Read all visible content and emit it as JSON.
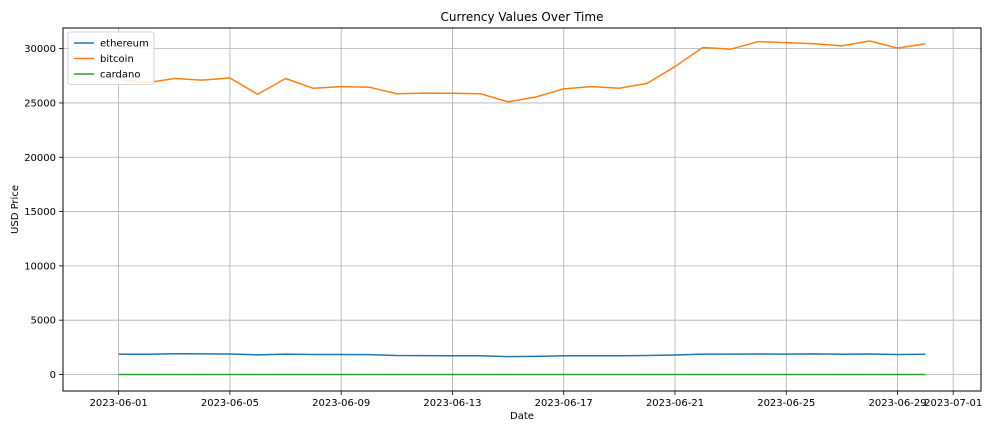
{
  "chart_data": {
    "type": "line",
    "title": "Currency Values Over Time",
    "xlabel": "Date",
    "ylabel": "USD Price",
    "grid": true,
    "legend_position": "top-left",
    "x": [
      "2023-06-01",
      "2023-06-02",
      "2023-06-03",
      "2023-06-04",
      "2023-06-05",
      "2023-06-06",
      "2023-06-07",
      "2023-06-08",
      "2023-06-09",
      "2023-06-10",
      "2023-06-11",
      "2023-06-12",
      "2023-06-13",
      "2023-06-14",
      "2023-06-15",
      "2023-06-16",
      "2023-06-17",
      "2023-06-18",
      "2023-06-19",
      "2023-06-20",
      "2023-06-21",
      "2023-06-22",
      "2023-06-23",
      "2023-06-24",
      "2023-06-25",
      "2023-06-26",
      "2023-06-27",
      "2023-06-28",
      "2023-06-29",
      "2023-06-30"
    ],
    "xlim": [
      "2023-05-30",
      "2023-07-02"
    ],
    "ylim": [
      -1520,
      31900
    ],
    "x_ticks": [
      "2023-06-01",
      "2023-06-05",
      "2023-06-09",
      "2023-06-13",
      "2023-06-17",
      "2023-06-21",
      "2023-06-25",
      "2023-06-29",
      "2023-07-01"
    ],
    "y_ticks": [
      0,
      5000,
      10000,
      15000,
      20000,
      25000,
      30000
    ],
    "series": [
      {
        "name": "ethereum",
        "color": "#1f77b4",
        "values": [
          1870,
          1860,
          1905,
          1895,
          1890,
          1810,
          1880,
          1835,
          1845,
          1830,
          1750,
          1740,
          1730,
          1720,
          1650,
          1670,
          1720,
          1725,
          1720,
          1750,
          1790,
          1880,
          1870,
          1890,
          1870,
          1900,
          1860,
          1890,
          1840,
          1860
        ]
      },
      {
        "name": "bitcoin",
        "color": "#ff7f0e",
        "values": [
          27200,
          26850,
          27250,
          27100,
          27300,
          25800,
          27250,
          26350,
          26500,
          26450,
          25850,
          25900,
          25890,
          25850,
          25100,
          25550,
          26300,
          26500,
          26350,
          26800,
          28350,
          30100,
          29950,
          30650,
          30550,
          30450,
          30250,
          30700,
          30050,
          30450
        ]
      },
      {
        "name": "cardano",
        "color": "#2ca02c",
        "values": [
          0.37,
          0.37,
          0.37,
          0.37,
          0.37,
          0.35,
          0.35,
          0.32,
          0.3,
          0.27,
          0.26,
          0.26,
          0.27,
          0.27,
          0.26,
          0.27,
          0.28,
          0.28,
          0.28,
          0.28,
          0.28,
          0.29,
          0.29,
          0.29,
          0.29,
          0.29,
          0.28,
          0.29,
          0.28,
          0.29
        ]
      }
    ]
  }
}
